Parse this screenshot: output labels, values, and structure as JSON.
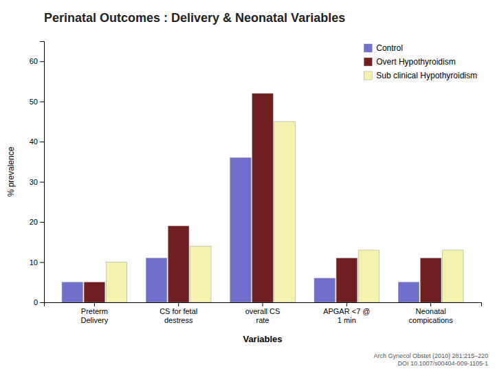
{
  "chart_data": {
    "type": "bar",
    "title": "Perinatal Outcomes : Delivery & Neonatal Variables",
    "x_label": "Variables",
    "y_label": "% prevalence",
    "categories": [
      "Preterm\nDelivery",
      "CS for fetal\ndestress",
      "overall CS\nrate",
      "APGAR <7 @\n1 min",
      "Neonatal\ncompications"
    ],
    "series": [
      {
        "name": "Control",
        "color": "#7070CC",
        "values": [
          5,
          11,
          36,
          6,
          5
        ]
      },
      {
        "name": "Overt Hypothyroidism",
        "color": "#702020",
        "values": [
          5,
          19,
          52,
          11,
          11
        ]
      },
      {
        "name": "Sub clinical Hypothyroidism",
        "color": "#F5F2B0",
        "values": [
          10,
          14,
          45,
          13,
          13
        ]
      }
    ],
    "ylim": [
      0,
      65
    ],
    "yticks": [
      0,
      10,
      20,
      30,
      40,
      50,
      60
    ],
    "grid": false,
    "legend": "upper right",
    "annotations": [
      "Arch Gynecol Obstet (2010) 281:215–220\nDOI 10.1007/s00404-009-1105-1"
    ]
  }
}
